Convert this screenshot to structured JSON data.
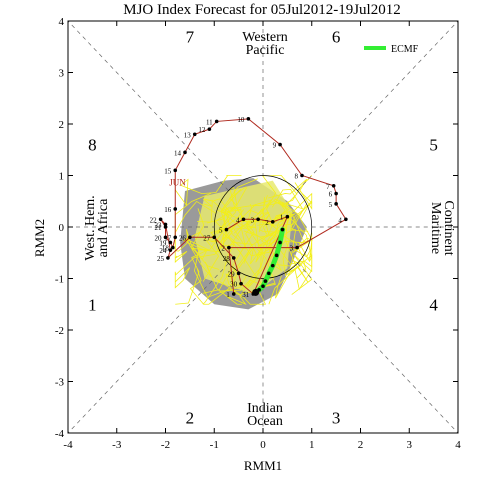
{
  "chart_data": {
    "type": "scatter",
    "title": "MJO Index Forecast for 05Jul2012-19Jul2012",
    "xlabel": "RMM1",
    "ylabel": "RMM2",
    "xlim": [
      -4,
      4
    ],
    "ylim": [
      -4,
      4
    ],
    "x_ticks": [
      "-4",
      "-3",
      "-2",
      "-1",
      "0",
      "1",
      "2",
      "3",
      "4"
    ],
    "y_ticks": [
      "-4",
      "-3",
      "-2",
      "-1",
      "0",
      "1",
      "2",
      "3",
      "4"
    ],
    "phases": [
      {
        "label": "1",
        "x": -3.5,
        "y": -1.5
      },
      {
        "label": "2",
        "x": -1.5,
        "y": -3.7
      },
      {
        "label": "3",
        "x": 1.5,
        "y": -3.7
      },
      {
        "label": "4",
        "x": 3.5,
        "y": -1.5
      },
      {
        "label": "5",
        "x": 3.5,
        "y": 1.6
      },
      {
        "label": "6",
        "x": 1.5,
        "y": 3.7
      },
      {
        "label": "7",
        "x": -1.5,
        "y": 3.7
      },
      {
        "label": "8",
        "x": -3.5,
        "y": 1.6
      }
    ],
    "regions": {
      "top": "Western Pacific",
      "bottom": "Indian Ocean",
      "left": "West. Hem. and Africa",
      "right": "Maritime Continent"
    },
    "legend": {
      "label": "ECMF",
      "color": "#33ee33",
      "position": "top-right"
    },
    "month_label": "JUN",
    "observed": {
      "color": "#b02a1f",
      "points": [
        {
          "day": "1",
          "x": -0.6,
          "y": -1.3
        },
        {
          "day": "2",
          "x": -0.7,
          "y": -0.4
        },
        {
          "day": "3",
          "x": 0.7,
          "y": -0.4
        },
        {
          "day": "4",
          "x": 1.7,
          "y": 0.15
        },
        {
          "day": "5",
          "x": 1.5,
          "y": 0.45
        },
        {
          "day": "6",
          "x": 1.5,
          "y": 0.65
        },
        {
          "day": "7",
          "x": 1.45,
          "y": 0.8
        },
        {
          "day": "8",
          "x": 0.8,
          "y": 1.0
        },
        {
          "day": "9",
          "x": 0.35,
          "y": 1.6
        },
        {
          "day": "10",
          "x": -0.3,
          "y": 2.1
        },
        {
          "day": "11",
          "x": -0.95,
          "y": 2.05
        },
        {
          "day": "12",
          "x": -1.1,
          "y": 1.9
        },
        {
          "day": "13",
          "x": -1.4,
          "y": 1.8
        },
        {
          "day": "14",
          "x": -1.6,
          "y": 1.45
        },
        {
          "day": "15",
          "x": -1.8,
          "y": 1.1
        },
        {
          "day": "16",
          "x": -1.8,
          "y": 0.35
        },
        {
          "day": "17",
          "x": -1.8,
          "y": -0.2
        },
        {
          "day": "18",
          "x": -1.85,
          "y": -0.4
        },
        {
          "day": "19",
          "x": -1.9,
          "y": -0.3
        },
        {
          "day": "20",
          "x": -2.0,
          "y": -0.2
        },
        {
          "day": "21",
          "x": -2.0,
          "y": 0.0
        },
        {
          "day": "22",
          "x": -2.1,
          "y": 0.15
        },
        {
          "day": "23",
          "x": -2.0,
          "y": 0.05
        },
        {
          "day": "24",
          "x": -1.9,
          "y": -0.45
        },
        {
          "day": "25",
          "x": -1.95,
          "y": -0.6
        },
        {
          "day": "26",
          "x": -1.5,
          "y": -0.2
        },
        {
          "day": "27",
          "x": -1.0,
          "y": -0.2
        },
        {
          "day": "28",
          "x": -0.6,
          "y": -0.6
        },
        {
          "day": "29",
          "x": -0.5,
          "y": -0.9
        },
        {
          "day": "30",
          "x": -0.45,
          "y": -1.1
        },
        {
          "day": "31",
          "x": -0.2,
          "y": -1.3
        },
        {
          "day": "1",
          "x": 0.5,
          "y": 0.2
        },
        {
          "day": "2",
          "x": 0.2,
          "y": 0.1
        },
        {
          "day": "3",
          "x": -0.1,
          "y": 0.15
        },
        {
          "day": "4",
          "x": -0.4,
          "y": 0.15
        },
        {
          "day": "5",
          "x": -0.75,
          "y": -0.05
        }
      ]
    },
    "forecast": {
      "name": "ECMF",
      "color": "#33ee33",
      "x": [
        0.4,
        0.35,
        0.28,
        0.2,
        0.12,
        0.05,
        0.0,
        -0.08,
        -0.15
      ],
      "y": [
        -0.05,
        -0.3,
        -0.55,
        -0.75,
        -0.9,
        -1.05,
        -1.15,
        -1.22,
        -1.27
      ]
    }
  }
}
